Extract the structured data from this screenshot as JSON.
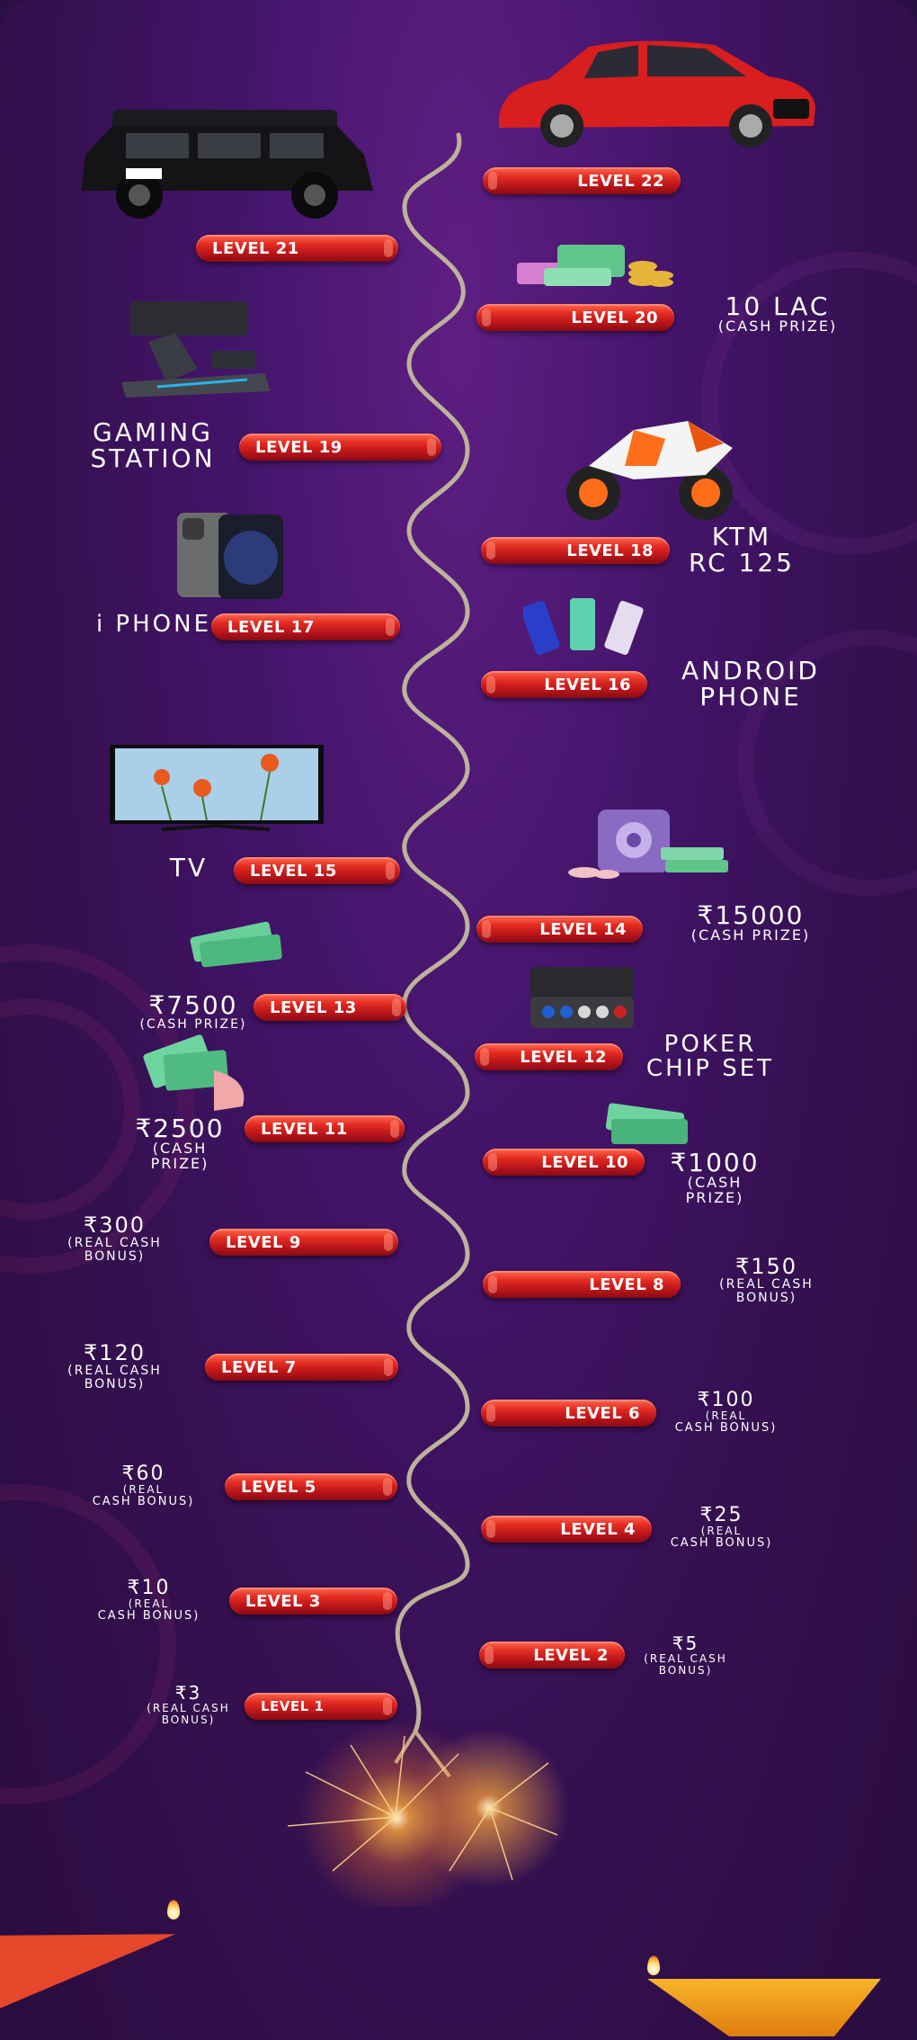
{
  "levels": {
    "l1": "LEVEL 1",
    "l2": "LEVEL 2",
    "l3": "LEVEL 3",
    "l4": "LEVEL 4",
    "l5": "LEVEL 5",
    "l6": "LEVEL 6",
    "l7": "LEVEL 7",
    "l8": "LEVEL 8",
    "l9": "LEVEL 9",
    "l10": "LEVEL 10",
    "l11": "LEVEL 11",
    "l12": "LEVEL 12",
    "l13": "LEVEL 13",
    "l14": "LEVEL 14",
    "l15": "LEVEL 15",
    "l16": "LEVEL 16",
    "l17": "LEVEL 17",
    "l18": "LEVEL 18",
    "l19": "LEVEL 19",
    "l20": "LEVEL 20",
    "l21": "LEVEL 21",
    "l22": "LEVEL 22"
  },
  "prizes": {
    "p1": {
      "amount": "₹3",
      "line1": "(REAL CASH",
      "line2": "BONUS)"
    },
    "p2": {
      "amount": "₹5",
      "line1": "(REAL CASH",
      "line2": "BONUS)"
    },
    "p3": {
      "amount": "₹10",
      "line1": "(REAL",
      "line2": "CASH BONUS)"
    },
    "p4": {
      "amount": "₹25",
      "line1": "(REAL",
      "line2": "CASH BONUS)"
    },
    "p5": {
      "amount": "₹60",
      "line1": "(REAL",
      "line2": "CASH BONUS)"
    },
    "p6": {
      "amount": "₹100",
      "line1": "(REAL",
      "line2": "CASH BONUS)"
    },
    "p7": {
      "amount": "₹120",
      "line1": "(REAL CASH",
      "line2": "BONUS)"
    },
    "p8": {
      "amount": "₹150",
      "line1": "(REAL CASH",
      "line2": "BONUS)"
    },
    "p9": {
      "amount": "₹300",
      "line1": "(REAL CASH",
      "line2": "BONUS)"
    },
    "p10": {
      "amount": "₹1000",
      "line1": "(CASH",
      "line2": "PRIZE)"
    },
    "p11": {
      "amount": "₹2500",
      "line1": "(CASH",
      "line2": "PRIZE)"
    },
    "p12": {
      "line1": "POKER",
      "line2": "CHIP SET"
    },
    "p13": {
      "amount": "₹7500",
      "line1": "(CASH PRIZE)"
    },
    "p14": {
      "amount": "₹15000",
      "line1": "(CASH PRIZE)"
    },
    "p15": {
      "line1": "TV"
    },
    "p16": {
      "line1": "ANDROID",
      "line2": "PHONE"
    },
    "p17": {
      "line1": "i PHONE"
    },
    "p18": {
      "line1": "KTM",
      "line2": "RC 125"
    },
    "p19": {
      "line1": "GAMING",
      "line2": "STATION"
    },
    "p20": {
      "amount": "10 LAC",
      "line1": "(CASH PRIZE)"
    }
  },
  "icons": {
    "car_jeep": "jeep-icon",
    "car_sedan": "red-sedan-icon",
    "cash": "cash-stack-icon",
    "gaming": "gaming-chair-icon",
    "bike": "motorcycle-icon",
    "iphone": "iphone-icon",
    "android": "android-phone-icon",
    "tv": "tv-icon",
    "safe": "safe-icon",
    "chips": "poker-case-icon"
  },
  "colors": {
    "background": "#43146a",
    "level_pill": "#d3201f",
    "rope": "#c9bfa8",
    "text": "#ffffff"
  }
}
